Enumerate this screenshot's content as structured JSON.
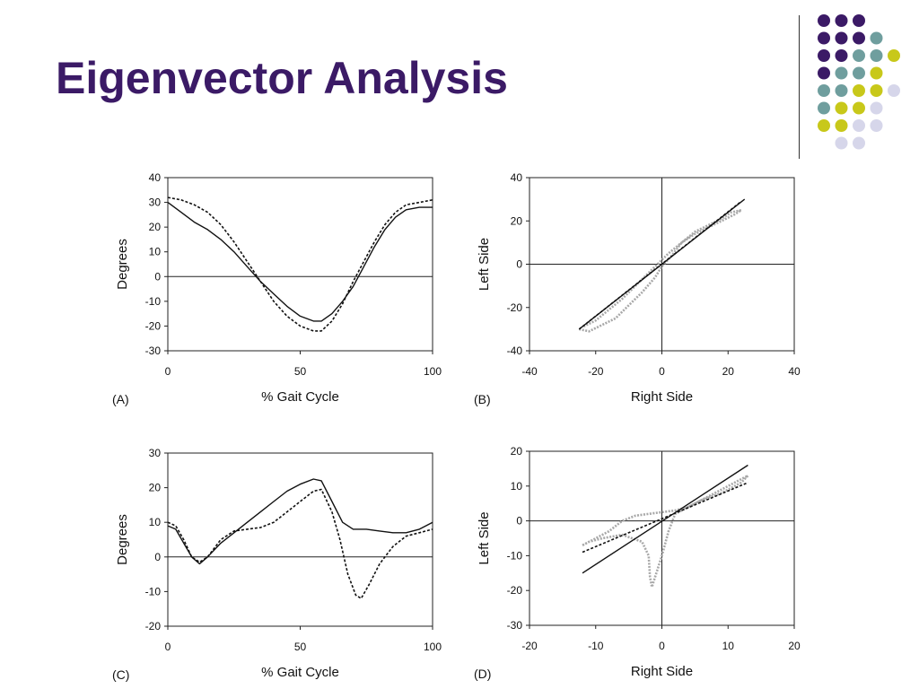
{
  "slide": {
    "title": "Eigenvector Analysis",
    "title_color": "#3b1a66",
    "decoration": {
      "palette": {
        "dark_purple": "#3b1a66",
        "teal": "#6f9e9e",
        "yellow_green": "#c8c81a",
        "lavender": "#d6d6ea"
      },
      "rows": [
        [
          "dark_purple",
          "dark_purple",
          "dark_purple"
        ],
        [
          "dark_purple",
          "dark_purple",
          "dark_purple",
          "teal"
        ],
        [
          "dark_purple",
          "dark_purple",
          "teal",
          "teal",
          "yellow_green"
        ],
        [
          "dark_purple",
          "teal",
          "teal",
          "yellow_green"
        ],
        [
          "teal",
          "teal",
          "yellow_green",
          "yellow_green",
          "lavender"
        ],
        [
          "teal",
          "yellow_green",
          "yellow_green",
          "lavender"
        ],
        [
          "yellow_green",
          "yellow_green",
          "lavender",
          "lavender"
        ],
        [
          "lavender",
          "lavender"
        ]
      ]
    }
  },
  "chart_data": [
    {
      "panel": "(A)",
      "type": "line",
      "xlabel": "% Gait Cycle",
      "ylabel": "Degrees",
      "xlim": [
        0,
        100
      ],
      "ylim": [
        -30,
        40
      ],
      "xticks": [
        0,
        50,
        100
      ],
      "yticks": [
        40,
        30,
        20,
        10,
        0,
        -10,
        -20,
        -30
      ],
      "zero_line": true,
      "series": [
        {
          "style": "solid",
          "color": "#111111",
          "points": [
            [
              0,
              30
            ],
            [
              5,
              26
            ],
            [
              10,
              22
            ],
            [
              15,
              19
            ],
            [
              20,
              15
            ],
            [
              25,
              10
            ],
            [
              30,
              4
            ],
            [
              35,
              -2
            ],
            [
              40,
              -7
            ],
            [
              45,
              -12
            ],
            [
              50,
              -16
            ],
            [
              55,
              -18
            ],
            [
              58,
              -18
            ],
            [
              62,
              -15
            ],
            [
              66,
              -10
            ],
            [
              70,
              -4
            ],
            [
              74,
              4
            ],
            [
              78,
              12
            ],
            [
              82,
              19
            ],
            [
              86,
              24
            ],
            [
              90,
              27
            ],
            [
              95,
              28
            ],
            [
              100,
              28
            ]
          ]
        },
        {
          "style": "dashed",
          "color": "#111111",
          "points": [
            [
              0,
              32
            ],
            [
              5,
              31
            ],
            [
              10,
              29
            ],
            [
              15,
              26
            ],
            [
              20,
              21
            ],
            [
              25,
              14
            ],
            [
              30,
              6
            ],
            [
              35,
              -2
            ],
            [
              40,
              -10
            ],
            [
              45,
              -16
            ],
            [
              50,
              -20
            ],
            [
              55,
              -22
            ],
            [
              58,
              -22
            ],
            [
              62,
              -18
            ],
            [
              66,
              -11
            ],
            [
              70,
              -2
            ],
            [
              74,
              6
            ],
            [
              78,
              14
            ],
            [
              82,
              21
            ],
            [
              86,
              26
            ],
            [
              90,
              29
            ],
            [
              95,
              30
            ],
            [
              100,
              31
            ]
          ]
        }
      ]
    },
    {
      "panel": "(B)",
      "type": "scatter",
      "xlabel": "Right Side",
      "ylabel": "Left Side",
      "xlim": [
        -40,
        40
      ],
      "ylim": [
        -40,
        40
      ],
      "xticks": [
        -40,
        -20,
        0,
        20,
        40
      ],
      "yticks": [
        40,
        20,
        0,
        -20,
        -40
      ],
      "zero_line": true,
      "series": [
        {
          "style": "dotted-gray",
          "color": "#a8a8a8",
          "points": [
            [
              -25,
              -30
            ],
            [
              -22,
              -31
            ],
            [
              -18,
              -28
            ],
            [
              -14,
              -25
            ],
            [
              -10,
              -19
            ],
            [
              -6,
              -13
            ],
            [
              -2,
              -6
            ],
            [
              0,
              -1
            ],
            [
              3,
              4
            ],
            [
              6,
              10
            ],
            [
              10,
              15
            ],
            [
              14,
              18
            ],
            [
              18,
              21
            ],
            [
              21,
              24
            ],
            [
              24,
              25
            ],
            [
              22,
              23
            ],
            [
              18,
              20
            ],
            [
              14,
              17
            ],
            [
              10,
              14
            ],
            [
              6,
              10
            ],
            [
              2,
              5
            ],
            [
              0,
              2
            ],
            [
              -4,
              -4
            ],
            [
              -8,
              -10
            ],
            [
              -12,
              -16
            ],
            [
              -16,
              -21
            ],
            [
              -20,
              -26
            ],
            [
              -24,
              -29
            ]
          ]
        },
        {
          "style": "solid",
          "color": "#111111",
          "points": [
            [
              -25,
              -30
            ],
            [
              25,
              30
            ]
          ]
        },
        {
          "style": "dashed",
          "color": "#111111",
          "points": [
            [
              -25,
              -30
            ],
            [
              24,
              29
            ]
          ]
        }
      ]
    },
    {
      "panel": "(C)",
      "type": "line",
      "xlabel": "% Gait Cycle",
      "ylabel": "Degrees",
      "xlim": [
        0,
        100
      ],
      "ylim": [
        -20,
        30
      ],
      "xticks": [
        0,
        50,
        100
      ],
      "yticks": [
        30,
        20,
        10,
        0,
        -10,
        -20
      ],
      "zero_line": true,
      "series": [
        {
          "style": "solid",
          "color": "#111111",
          "points": [
            [
              0,
              9
            ],
            [
              3,
              8
            ],
            [
              6,
              4
            ],
            [
              9,
              0
            ],
            [
              12,
              -2
            ],
            [
              15,
              0
            ],
            [
              20,
              4
            ],
            [
              25,
              7
            ],
            [
              30,
              10
            ],
            [
              35,
              13
            ],
            [
              40,
              16
            ],
            [
              45,
              19
            ],
            [
              50,
              21
            ],
            [
              55,
              22.5
            ],
            [
              58,
              22
            ],
            [
              62,
              16
            ],
            [
              66,
              10
            ],
            [
              70,
              8
            ],
            [
              75,
              8
            ],
            [
              80,
              7.5
            ],
            [
              85,
              7
            ],
            [
              90,
              7
            ],
            [
              95,
              8
            ],
            [
              100,
              10
            ]
          ]
        },
        {
          "style": "dashed",
          "color": "#111111",
          "points": [
            [
              0,
              10
            ],
            [
              3,
              9
            ],
            [
              6,
              5
            ],
            [
              9,
              0
            ],
            [
              12,
              -1.5
            ],
            [
              15,
              0
            ],
            [
              20,
              5
            ],
            [
              25,
              7.5
            ],
            [
              30,
              8
            ],
            [
              35,
              8.5
            ],
            [
              40,
              10
            ],
            [
              45,
              13
            ],
            [
              50,
              16
            ],
            [
              55,
              19
            ],
            [
              58,
              19.5
            ],
            [
              62,
              13
            ],
            [
              65,
              5
            ],
            [
              68,
              -5
            ],
            [
              71,
              -11
            ],
            [
              73,
              -12
            ],
            [
              76,
              -8
            ],
            [
              80,
              -2
            ],
            [
              85,
              3
            ],
            [
              90,
              6
            ],
            [
              95,
              7
            ],
            [
              100,
              8
            ]
          ]
        }
      ]
    },
    {
      "panel": "(D)",
      "type": "scatter",
      "xlabel": "Right Side",
      "ylabel": "Left Side",
      "xlim": [
        -20,
        20
      ],
      "ylim": [
        -30,
        20
      ],
      "xticks": [
        -20,
        -10,
        0,
        10,
        20
      ],
      "yticks": [
        20,
        10,
        0,
        -10,
        -20,
        -30
      ],
      "zero_line": true,
      "series": [
        {
          "style": "dotted-gray",
          "color": "#a8a8a8",
          "points": [
            [
              -12,
              -7
            ],
            [
              -10,
              -5
            ],
            [
              -8,
              -3
            ],
            [
              -6,
              0
            ],
            [
              -4,
              1.5
            ],
            [
              -2,
              2
            ],
            [
              0,
              2.5
            ],
            [
              2,
              3
            ],
            [
              4,
              4
            ],
            [
              6,
              6
            ],
            [
              8,
              8
            ],
            [
              10,
              10
            ],
            [
              12,
              12
            ],
            [
              13,
              13
            ],
            [
              12,
              11
            ],
            [
              9,
              8
            ],
            [
              6,
              6
            ],
            [
              4,
              4
            ],
            [
              2,
              2
            ],
            [
              1,
              -3
            ],
            [
              0,
              -10
            ],
            [
              -1,
              -16
            ],
            [
              -1.5,
              -19
            ],
            [
              -1.8,
              -16
            ],
            [
              -2,
              -10
            ],
            [
              -3,
              -6
            ],
            [
              -6,
              -4
            ],
            [
              -9,
              -5
            ],
            [
              -11,
              -6
            ],
            [
              -12,
              -7
            ]
          ]
        },
        {
          "style": "solid",
          "color": "#111111",
          "points": [
            [
              -12,
              -15
            ],
            [
              13,
              16
            ]
          ]
        },
        {
          "style": "dashed",
          "color": "#111111",
          "points": [
            [
              -12,
              -9
            ],
            [
              13,
              11
            ]
          ]
        }
      ]
    }
  ]
}
